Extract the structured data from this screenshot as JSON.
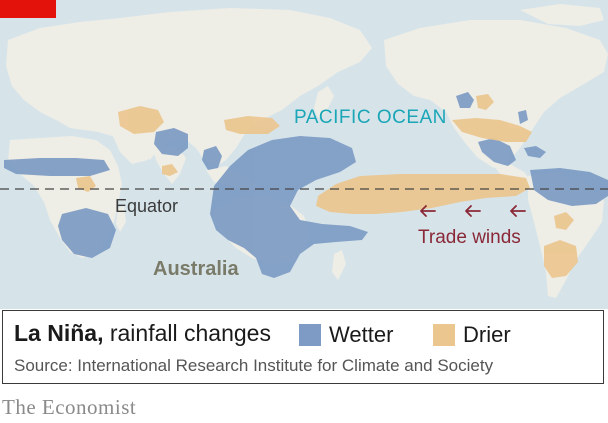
{
  "map": {
    "ocean_label": "PACIFIC OCEAN",
    "equator_label": "Equator",
    "continent_label": "Australia",
    "trade_winds_label": "Trade winds",
    "colors": {
      "ocean": "#d6e4ea",
      "land": "#eeede6",
      "wetter": "#7d9bc4",
      "drier": "#ebc68f",
      "equator_line": "#444444",
      "trade_winds": "#8a2837",
      "ocean_label": "#1aa6b6",
      "brand_red": "#e3120b"
    },
    "icons": {
      "trade_wind_arrow": "left-arrow-icon"
    }
  },
  "legend": {
    "title_bold": "La Niña,",
    "title_rest": " rainfall changes",
    "wetter_label": "Wetter",
    "drier_label": "Drier",
    "source": "Source: International Research Institute for Climate and Society"
  },
  "brand": "The Economist"
}
